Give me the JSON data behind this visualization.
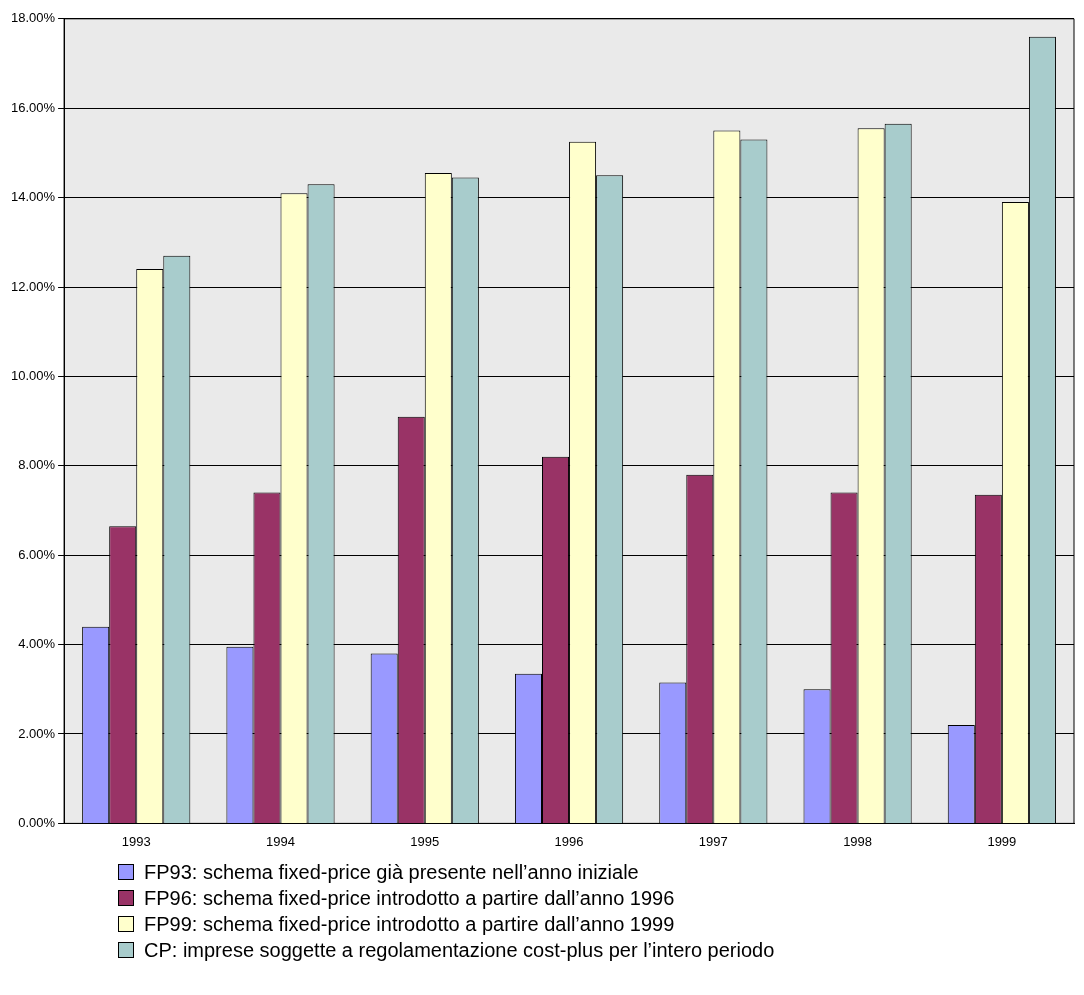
{
  "chart_data": {
    "type": "bar",
    "categories": [
      "1993",
      "1994",
      "1995",
      "1996",
      "1997",
      "1998",
      "1999"
    ],
    "series": [
      {
        "name": "FP93: schema fixed-price già presente nell’anno iniziale",
        "color": "#9999ff",
        "values": [
          4.4,
          3.95,
          3.8,
          3.35,
          3.15,
          3.0,
          2.2
        ]
      },
      {
        "name": "FP96: schema fixed-price introdotto a partire dall’anno 1996",
        "color": "#993366",
        "values": [
          6.65,
          7.4,
          9.1,
          8.2,
          7.8,
          7.4,
          7.35
        ]
      },
      {
        "name": "FP99: schema fixed-price introdotto a partire dall’anno 1999",
        "color": "#ffffcc",
        "values": [
          12.4,
          14.1,
          14.55,
          15.25,
          15.5,
          15.55,
          13.9
        ]
      },
      {
        "name": "CP: imprese soggette a regolamentazione cost-plus per l’intero periodo",
        "color": "#a8cccc",
        "values": [
          12.7,
          14.3,
          14.45,
          14.5,
          15.3,
          15.65,
          17.6
        ]
      }
    ],
    "ylim": [
      0,
      18
    ],
    "yticks": [
      {
        "value": 0,
        "label": "0.00%"
      },
      {
        "value": 2,
        "label": "2.00%"
      },
      {
        "value": 4,
        "label": "4.00%"
      },
      {
        "value": 6,
        "label": "6.00%"
      },
      {
        "value": 8,
        "label": "8.00%"
      },
      {
        "value": 10,
        "label": "10.00%"
      },
      {
        "value": 12,
        "label": "12.00%"
      },
      {
        "value": 14,
        "label": "14.00%"
      },
      {
        "value": 16,
        "label": "16.00%"
      },
      {
        "value": 18,
        "label": "18.00%"
      }
    ],
    "grid": "y",
    "legend": "bottom"
  }
}
